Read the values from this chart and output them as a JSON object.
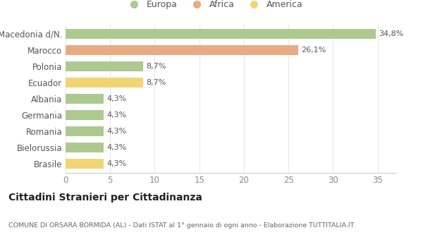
{
  "categories": [
    "Macedonia d/N.",
    "Marocco",
    "Polonia",
    "Ecuador",
    "Albania",
    "Germania",
    "Romania",
    "Bielorussia",
    "Brasile"
  ],
  "values": [
    34.8,
    26.1,
    8.7,
    8.7,
    4.3,
    4.3,
    4.3,
    4.3,
    4.3
  ],
  "labels": [
    "34,8%",
    "26,1%",
    "8,7%",
    "8,7%",
    "4,3%",
    "4,3%",
    "4,3%",
    "4,3%",
    "4,3%"
  ],
  "colors": [
    "#adc990",
    "#e8aa82",
    "#adc990",
    "#f2d472",
    "#adc990",
    "#adc990",
    "#adc990",
    "#adc990",
    "#f2d472"
  ],
  "legend_labels": [
    "Europa",
    "Africa",
    "America"
  ],
  "legend_colors": [
    "#adc990",
    "#e8aa82",
    "#f2d472"
  ],
  "xlim": [
    0,
    37
  ],
  "xticks": [
    0,
    5,
    10,
    15,
    20,
    25,
    30,
    35
  ],
  "title": "Cittadini Stranieri per Cittadinanza",
  "subtitle": "COMUNE DI ORSARA BORMIDA (AL) - Dati ISTAT al 1° gennaio di ogni anno - Elaborazione TUTTITALIA.IT",
  "background_color": "#ffffff",
  "grid_color": "#e8e8e0",
  "bar_height": 0.6,
  "label_fontsize": 8.0,
  "ytick_fontsize": 8.5,
  "xtick_fontsize": 8.5
}
